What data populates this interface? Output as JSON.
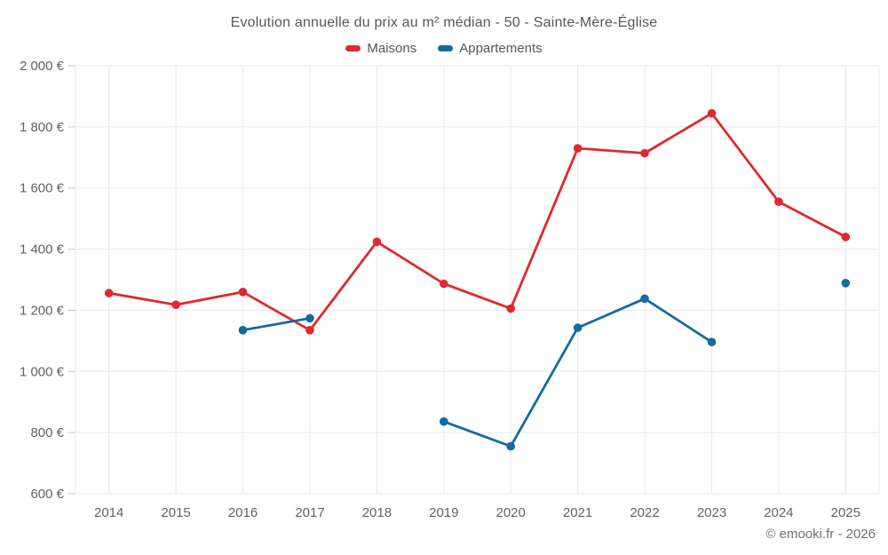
{
  "footer": {
    "copyright": "© emooki.fr - 2026"
  },
  "chart_data": {
    "type": "line",
    "title": "Evolution annuelle du prix au m² médian - 50 - Sainte-Mère-Église",
    "categories": [
      "2014",
      "2015",
      "2016",
      "2017",
      "2018",
      "2019",
      "2020",
      "2021",
      "2022",
      "2023",
      "2024",
      "2025"
    ],
    "series": [
      {
        "name": "Maisons",
        "color": "#e0282f",
        "values": [
          1256,
          1218,
          1260,
          1135,
          1424,
          1287,
          1206,
          1730,
          1714,
          1844,
          1555,
          1440
        ]
      },
      {
        "name": "Appartements",
        "color": "#166a9f",
        "values": [
          null,
          null,
          1135,
          1174,
          null,
          836,
          755,
          1143,
          1238,
          1096,
          null,
          1289
        ]
      }
    ],
    "xlabel": "",
    "ylabel": "",
    "ylim": [
      600,
      2000
    ],
    "ytick_values": [
      600,
      800,
      1000,
      1200,
      1400,
      1600,
      1800,
      2000
    ],
    "ytick_labels": [
      "600 €",
      "800 €",
      "1 000 €",
      "1 200 €",
      "1 400 €",
      "1 600 €",
      "1 800 €",
      "2 000 €"
    ],
    "grid": true,
    "legend_position": "top"
  }
}
